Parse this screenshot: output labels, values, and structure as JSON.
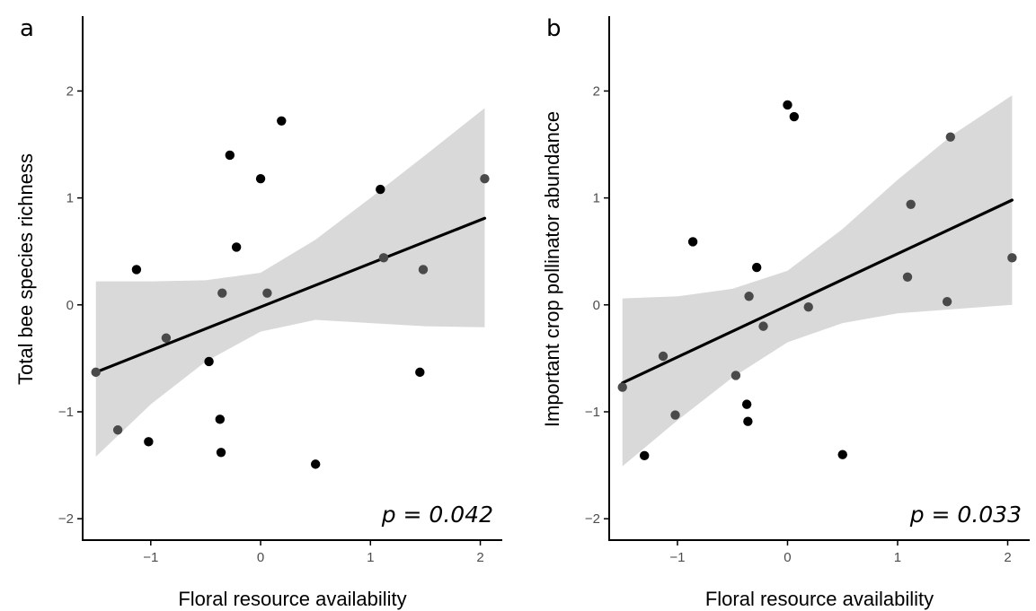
{
  "chart_data": [
    {
      "type": "scatter",
      "panel_label": "a",
      "xlabel": "Floral resource availability",
      "ylabel": "Total bee species richness",
      "annotation": "p = 0.042",
      "xlim": [
        -1.62,
        2.2
      ],
      "ylim": [
        -2.2,
        2.7
      ],
      "xticks": [
        -1,
        0,
        1,
        2
      ],
      "yticks": [
        -2,
        -1,
        0,
        1,
        2
      ],
      "tick_labels_x": [
        "−1",
        "0",
        "1",
        "2"
      ],
      "tick_labels_y": [
        "−2",
        "−1",
        "0",
        "1",
        "2"
      ],
      "grid": false,
      "points": [
        {
          "x": -1.5,
          "y": -0.63
        },
        {
          "x": -1.3,
          "y": -1.17
        },
        {
          "x": -1.13,
          "y": 0.33
        },
        {
          "x": -1.02,
          "y": -1.28
        },
        {
          "x": -0.86,
          "y": -0.31
        },
        {
          "x": -0.47,
          "y": -0.53
        },
        {
          "x": -0.37,
          "y": -1.07
        },
        {
          "x": -0.36,
          "y": -1.38
        },
        {
          "x": -0.35,
          "y": 0.11
        },
        {
          "x": -0.28,
          "y": 1.4
        },
        {
          "x": -0.22,
          "y": 0.54
        },
        {
          "x": 0.0,
          "y": 1.18
        },
        {
          "x": 0.06,
          "y": 0.11
        },
        {
          "x": 0.19,
          "y": 1.72
        },
        {
          "x": 0.5,
          "y": -1.49
        },
        {
          "x": 1.09,
          "y": 1.08
        },
        {
          "x": 1.12,
          "y": 0.44
        },
        {
          "x": 1.45,
          "y": -0.63
        },
        {
          "x": 1.48,
          "y": 0.33
        },
        {
          "x": 2.04,
          "y": 1.18
        }
      ],
      "fit_line": {
        "x": [
          -1.5,
          2.04
        ],
        "y": [
          -0.63,
          0.81
        ]
      },
      "ci_band": {
        "x": [
          -1.5,
          -1.0,
          -0.5,
          0.0,
          0.5,
          1.0,
          1.5,
          2.04
        ],
        "lower": [
          -1.42,
          -0.93,
          -0.53,
          -0.25,
          -0.14,
          -0.17,
          -0.2,
          -0.21
        ],
        "upper": [
          0.22,
          0.22,
          0.23,
          0.3,
          0.61,
          1.0,
          1.4,
          1.84
        ]
      }
    },
    {
      "type": "scatter",
      "panel_label": "b",
      "xlabel": "Floral resource availability",
      "ylabel": "Important crop pollinator abundance",
      "annotation": "p = 0.033",
      "xlim": [
        -1.62,
        2.2
      ],
      "ylim": [
        -2.2,
        2.7
      ],
      "xticks": [
        -1,
        0,
        1,
        2
      ],
      "yticks": [
        -2,
        -1,
        0,
        1,
        2
      ],
      "tick_labels_x": [
        "−1",
        "0",
        "1",
        "2"
      ],
      "tick_labels_y": [
        "−2",
        "−1",
        "0",
        "1",
        "2"
      ],
      "grid": false,
      "points": [
        {
          "x": -1.5,
          "y": -0.77
        },
        {
          "x": -1.3,
          "y": -1.41
        },
        {
          "x": -1.13,
          "y": -0.48
        },
        {
          "x": -1.02,
          "y": -1.03
        },
        {
          "x": -0.86,
          "y": 0.59
        },
        {
          "x": -0.47,
          "y": -0.66
        },
        {
          "x": -0.37,
          "y": -0.93
        },
        {
          "x": -0.36,
          "y": -1.09
        },
        {
          "x": -0.35,
          "y": 0.08
        },
        {
          "x": -0.28,
          "y": 0.35
        },
        {
          "x": -0.22,
          "y": -0.2
        },
        {
          "x": 0.0,
          "y": 1.87
        },
        {
          "x": 0.06,
          "y": 1.76
        },
        {
          "x": 0.19,
          "y": -0.02
        },
        {
          "x": 0.5,
          "y": -1.4
        },
        {
          "x": 1.09,
          "y": 0.26
        },
        {
          "x": 1.12,
          "y": 0.94
        },
        {
          "x": 1.45,
          "y": 0.03
        },
        {
          "x": 1.48,
          "y": 1.57
        },
        {
          "x": 2.04,
          "y": 0.44
        }
      ],
      "fit_line": {
        "x": [
          -1.5,
          2.04
        ],
        "y": [
          -0.73,
          0.98
        ]
      },
      "ci_band": {
        "x": [
          -1.5,
          -1.0,
          -0.5,
          0.0,
          0.5,
          1.0,
          1.5,
          2.04
        ],
        "lower": [
          -1.51,
          -1.08,
          -0.68,
          -0.35,
          -0.17,
          -0.08,
          -0.04,
          0.0
        ],
        "upper": [
          0.06,
          0.08,
          0.15,
          0.32,
          0.71,
          1.17,
          1.59,
          1.96
        ]
      }
    }
  ],
  "colors": {
    "point": "#000000",
    "point_in_band": "#4a4a4a",
    "fit_line": "#000000",
    "ci_band": "#d9d9d9",
    "axis": "#000000",
    "tick_label": "#4d4d4d"
  }
}
